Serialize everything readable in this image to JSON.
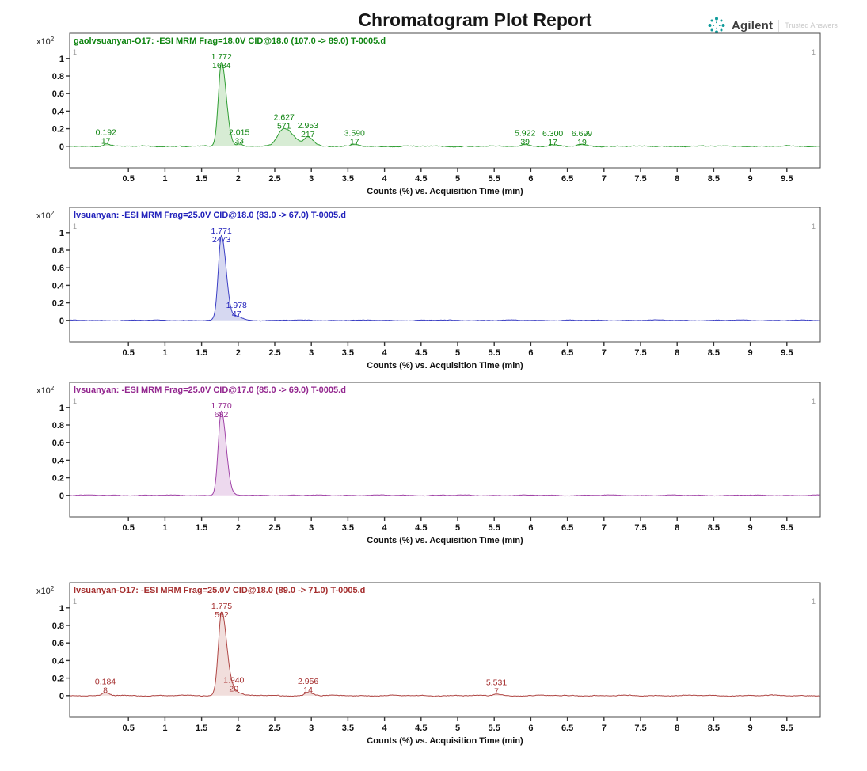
{
  "report": {
    "title": "Chromatogram Plot Report"
  },
  "brand": {
    "name": "Agilent",
    "tagline": "Trusted Answers",
    "logo_color": "#0f9b9b"
  },
  "axis": {
    "xlabel": "Counts (%) vs. Acquisition Time (min)",
    "y_scale_prefix": "x10",
    "y_scale_exponent": "2",
    "x_ticks": [
      "0.5",
      "1",
      "1.5",
      "2",
      "2.5",
      "3",
      "3.5",
      "4",
      "4.5",
      "5",
      "5.5",
      "6",
      "6.5",
      "7",
      "7.5",
      "8",
      "8.5",
      "9",
      "9.5"
    ],
    "y_ticks": [
      "0",
      "0.2",
      "0.4",
      "0.6",
      "0.8",
      "1"
    ],
    "xlim": [
      -0.3,
      9.95
    ],
    "ylim": [
      0,
      1
    ],
    "corner_marker": "1",
    "tick_color": "#111111",
    "frame_color": "#4a4a4a"
  },
  "chart_data": [
    {
      "type": "line",
      "title": "gaolvsuanyan-O17: -ESI MRM Frag=18.0V CID@18.0 (107.0 -> 89.0) T-0005.d",
      "xlabel": "Counts (%) vs. Acquisition Time (min)",
      "x_unit": "min",
      "y_scale": "x10^2",
      "trace_color": "#2f9e33",
      "fill_color": "#b7dcb0",
      "label_color": "#0e8410",
      "noise_amp": 0.014,
      "seed": 11,
      "peaks": [
        {
          "rt": "0.192",
          "count": "17",
          "height": 0.03,
          "sigma": 0.035
        },
        {
          "rt": "1.772",
          "count": "1684",
          "height": 0.96,
          "sigma": 0.042
        },
        {
          "rt": "2.015",
          "count": "33",
          "height": 0.028,
          "sigma": 0.04
        },
        {
          "rt": "2.627",
          "count": "571",
          "height": 0.2,
          "sigma": 0.085
        },
        {
          "rt": "2.953",
          "count": "217",
          "height": 0.105,
          "sigma": 0.05
        },
        {
          "rt": "3.590",
          "count": "17",
          "height": 0.02,
          "sigma": 0.04
        },
        {
          "rt": "5.922",
          "count": "39",
          "height": 0.022,
          "sigma": 0.05
        },
        {
          "rt": "6.300",
          "count": "17",
          "height": 0.015,
          "sigma": 0.04
        },
        {
          "rt": "6.699",
          "count": "19",
          "height": 0.018,
          "sigma": 0.05
        }
      ]
    },
    {
      "type": "line",
      "title": "lvsuanyan: -ESI MRM Frag=25.0V CID@18.0 (83.0 -> 67.0) T-0005.d",
      "xlabel": "Counts (%) vs. Acquisition Time (min)",
      "x_unit": "min",
      "y_scale": "x10^2",
      "trace_color": "#3b3fc4",
      "fill_color": "#b4b8e6",
      "label_color": "#2222bb",
      "noise_amp": 0.008,
      "seed": 22,
      "peaks": [
        {
          "rt": "1.771",
          "count": "2473",
          "height": 0.96,
          "sigma": 0.042
        },
        {
          "rt": "1.978",
          "count": "47",
          "height": 0.045,
          "sigma": 0.05
        }
      ]
    },
    {
      "type": "line",
      "title": "lvsuanyan: -ESI MRM Frag=25.0V CID@17.0 (85.0 -> 69.0) T-0005.d",
      "xlabel": "Counts (%) vs. Acquisition Time (min)",
      "x_unit": "min",
      "y_scale": "x10^2",
      "trace_color": "#a144a8",
      "fill_color": "#debae0",
      "label_color": "#93278f",
      "noise_amp": 0.008,
      "seed": 33,
      "peaks": [
        {
          "rt": "1.770",
          "count": "682",
          "height": 0.96,
          "sigma": 0.042
        }
      ]
    },
    {
      "type": "line",
      "title": "lvsuanyan-O17: -ESI MRM Frag=25.0V CID@18.0 (89.0 -> 71.0) T-0005.d",
      "xlabel": "Counts (%) vs. Acquisition Time (min)",
      "x_unit": "min",
      "y_scale": "x10^2",
      "trace_color": "#b04846",
      "fill_color": "#e6c3c0",
      "label_color": "#a52f2f",
      "noise_amp": 0.012,
      "seed": 44,
      "peaks": [
        {
          "rt": "0.184",
          "count": "8",
          "height": 0.03,
          "sigma": 0.035
        },
        {
          "rt": "1.775",
          "count": "562",
          "height": 0.96,
          "sigma": 0.045
        },
        {
          "rt": "1.940",
          "count": "20",
          "height": 0.05,
          "sigma": 0.05
        },
        {
          "rt": "2.956",
          "count": "14",
          "height": 0.035,
          "sigma": 0.04
        },
        {
          "rt": "5.531",
          "count": "7",
          "height": 0.02,
          "sigma": 0.04
        }
      ]
    }
  ]
}
